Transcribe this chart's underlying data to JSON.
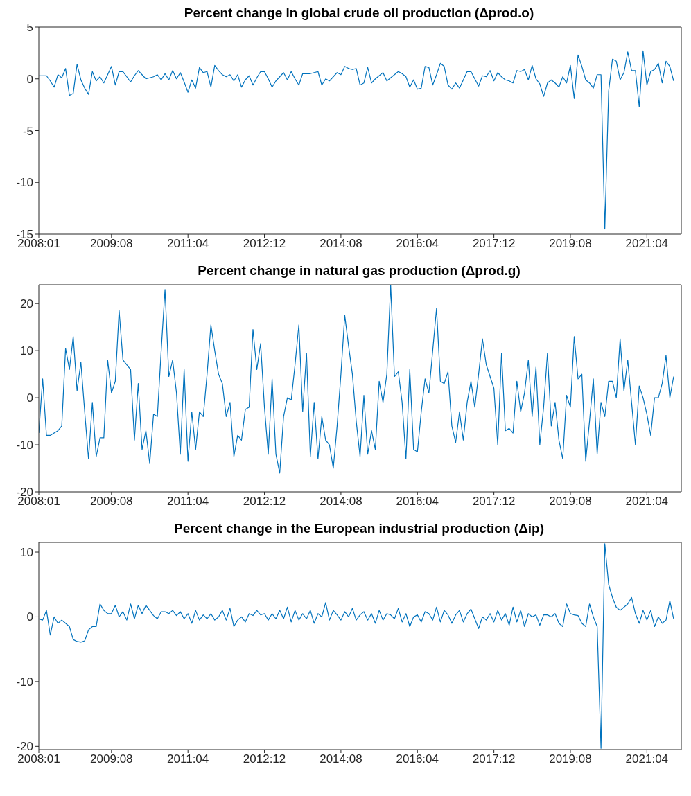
{
  "chart_data": [
    {
      "type": "line",
      "title": "Percent change in global crude oil production (Δprod.o)",
      "color": "#0072bd",
      "x": [
        "2008-01",
        "2008-02",
        "2008-03",
        "2008-04",
        "2008-05",
        "2008-06",
        "2008-07",
        "2008-08",
        "2008-09",
        "2008-10",
        "2008-11",
        "2008-12",
        "2009-01",
        "2009-02",
        "2009-03",
        "2009-04",
        "2009-05",
        "2009-06",
        "2009-07",
        "2009-08",
        "2009-09",
        "2009-10",
        "2009-11",
        "2009-12",
        "2010-01",
        "2010-02",
        "2010-03",
        "2010-04",
        "2010-05",
        "2010-06",
        "2010-07",
        "2010-08",
        "2010-09",
        "2010-10",
        "2010-11",
        "2010-12",
        "2011-01",
        "2011-02",
        "2011-03",
        "2011-04",
        "2011-05",
        "2011-06",
        "2011-07",
        "2011-08",
        "2011-09",
        "2011-10",
        "2011-11",
        "2011-12",
        "2012-01",
        "2012-02",
        "2012-03",
        "2012-04",
        "2012-05",
        "2012-06",
        "2012-07",
        "2012-08",
        "2012-09",
        "2012-10",
        "2012-11",
        "2012-12",
        "2013-01",
        "2013-02",
        "2013-03",
        "2013-04",
        "2013-05",
        "2013-06",
        "2013-07",
        "2013-08",
        "2013-09",
        "2013-10",
        "2013-11",
        "2013-12",
        "2014-01",
        "2014-02",
        "2014-03",
        "2014-04",
        "2014-05",
        "2014-06",
        "2014-07",
        "2014-08",
        "2014-09",
        "2014-10",
        "2014-11",
        "2014-12",
        "2015-01",
        "2015-02",
        "2015-03",
        "2015-04",
        "2015-05",
        "2015-06",
        "2015-07",
        "2015-08",
        "2015-09",
        "2015-10",
        "2015-11",
        "2015-12",
        "2016-01",
        "2016-02",
        "2016-03",
        "2016-04",
        "2016-05",
        "2016-06",
        "2016-07",
        "2016-08",
        "2016-09",
        "2016-10",
        "2016-11",
        "2016-12",
        "2017-01",
        "2017-02",
        "2017-03",
        "2017-04",
        "2017-05",
        "2017-06",
        "2017-07",
        "2017-08",
        "2017-09",
        "2017-10",
        "2017-11",
        "2017-12",
        "2018-01",
        "2018-02",
        "2018-03",
        "2018-04",
        "2018-05",
        "2018-06",
        "2018-07",
        "2018-08",
        "2018-09",
        "2018-10",
        "2018-11",
        "2018-12",
        "2019-01",
        "2019-02",
        "2019-03",
        "2019-04",
        "2019-05",
        "2019-06",
        "2019-07",
        "2019-08",
        "2019-09",
        "2019-10",
        "2019-11",
        "2019-12",
        "2020-01",
        "2020-02",
        "2020-03",
        "2020-04",
        "2020-05",
        "2020-06",
        "2020-07",
        "2020-08",
        "2020-09",
        "2020-10",
        "2020-11",
        "2020-12",
        "2021-01",
        "2021-02",
        "2021-03",
        "2021-04",
        "2021-05",
        "2021-06",
        "2021-07",
        "2021-08",
        "2021-09",
        "2021-10",
        "2021-11"
      ],
      "values": [
        0.3,
        0.3,
        0.3,
        -0.2,
        -0.8,
        0.4,
        0.1,
        1.0,
        -1.6,
        -1.4,
        1.4,
        -0.1,
        -0.9,
        -1.5,
        0.7,
        -0.2,
        0.2,
        -0.4,
        0.4,
        1.2,
        -0.6,
        0.7,
        0.7,
        0.2,
        -0.3,
        0.3,
        0.8,
        0.4,
        0,
        0.1,
        0.2,
        0.4,
        -0.1,
        0.5,
        -0.1,
        0.8,
        0,
        0.6,
        -0.3,
        -1.3,
        -0.1,
        -0.9,
        1.1,
        0.6,
        0.7,
        -0.8,
        1.3,
        0.8,
        0.4,
        0.2,
        0.4,
        -0.2,
        0.4,
        -0.8,
        -0.1,
        0.3,
        -0.6,
        0.1,
        0.7,
        0.7,
        0,
        -0.8,
        -0.2,
        0.2,
        0.6,
        -0.1,
        0.7,
        0,
        -0.6,
        0.5,
        0.5,
        0.5,
        0.6,
        0.7,
        -0.6,
        0,
        -0.2,
        0.2,
        0.6,
        0.4,
        1.2,
        1.0,
        0.9,
        1.0,
        -0.6,
        -0.4,
        1.1,
        -0.4,
        0,
        0.3,
        0.6,
        -0.2,
        0.1,
        0.4,
        0.7,
        0.5,
        0.2,
        -0.8,
        -0.1,
        -1.0,
        -0.9,
        1.2,
        1.1,
        -0.6,
        0.4,
        1.5,
        1.2,
        -0.6,
        -1.0,
        -0.4,
        -0.9,
        -0.1,
        0.7,
        0.7,
        0,
        -0.7,
        0.3,
        0.2,
        0.8,
        -0.2,
        0.6,
        0.2,
        -0.1,
        -0.2,
        -0.4,
        0.8,
        0.7,
        0.9,
        -0.1,
        1.3,
        0,
        -0.5,
        -1.7,
        -0.4,
        -0.1,
        -0.4,
        -0.8,
        0.2,
        -0.4,
        1.3,
        -1.9,
        2.3,
        1.2,
        -0.1,
        -0.4,
        -0.9,
        0.4,
        0.4,
        -14.5,
        -1.2,
        1.9,
        1.7,
        -0.1,
        0.6,
        2.6,
        0.8,
        0.8,
        -2.7,
        2.7,
        -0.6,
        0.7,
        0.9,
        1.5,
        -0.4,
        1.7,
        1.2,
        -0.2
      ],
      "xlim": [
        "2008-01",
        "2022-01"
      ],
      "xticks": [
        {
          "value": "2008-01",
          "label": "2008:01"
        },
        {
          "value": "2009-08",
          "label": "2009:08"
        },
        {
          "value": "2011-04",
          "label": "2011:04"
        },
        {
          "value": "2012-12",
          "label": "2012:12"
        },
        {
          "value": "2014-08",
          "label": "2014:08"
        },
        {
          "value": "2016-04",
          "label": "2016:04"
        },
        {
          "value": "2017-12",
          "label": "2017:12"
        },
        {
          "value": "2019-08",
          "label": "2019:08"
        },
        {
          "value": "2021-04",
          "label": "2021:04"
        }
      ],
      "ylim": [
        -15,
        5
      ],
      "yticks": [
        -15,
        -10,
        -5,
        0,
        5
      ]
    },
    {
      "type": "line",
      "title": "Percent change in natural gas production (Δprod.g)",
      "color": "#0072bd",
      "x": [
        "2008-01",
        "2008-02",
        "2008-03",
        "2008-04",
        "2008-05",
        "2008-06",
        "2008-07",
        "2008-08",
        "2008-09",
        "2008-10",
        "2008-11",
        "2008-12",
        "2009-01",
        "2009-02",
        "2009-03",
        "2009-04",
        "2009-05",
        "2009-06",
        "2009-07",
        "2009-08",
        "2009-09",
        "2009-10",
        "2009-11",
        "2009-12",
        "2010-01",
        "2010-02",
        "2010-03",
        "2010-04",
        "2010-05",
        "2010-06",
        "2010-07",
        "2010-08",
        "2010-09",
        "2010-10",
        "2010-11",
        "2010-12",
        "2011-01",
        "2011-02",
        "2011-03",
        "2011-04",
        "2011-05",
        "2011-06",
        "2011-07",
        "2011-08",
        "2011-09",
        "2011-10",
        "2011-11",
        "2011-12",
        "2012-01",
        "2012-02",
        "2012-03",
        "2012-04",
        "2012-05",
        "2012-06",
        "2012-07",
        "2012-08",
        "2012-09",
        "2012-10",
        "2012-11",
        "2012-12",
        "2013-01",
        "2013-02",
        "2013-03",
        "2013-04",
        "2013-05",
        "2013-06",
        "2013-07",
        "2013-08",
        "2013-09",
        "2013-10",
        "2013-11",
        "2013-12",
        "2014-01",
        "2014-02",
        "2014-03",
        "2014-04",
        "2014-05",
        "2014-06",
        "2014-07",
        "2014-08",
        "2014-09",
        "2014-10",
        "2014-11",
        "2014-12",
        "2015-01",
        "2015-02",
        "2015-03",
        "2015-04",
        "2015-05",
        "2015-06",
        "2015-07",
        "2015-08",
        "2015-09",
        "2015-10",
        "2015-11",
        "2015-12",
        "2016-01",
        "2016-02",
        "2016-03",
        "2016-04",
        "2016-05",
        "2016-06",
        "2016-07",
        "2016-08",
        "2016-09",
        "2016-10",
        "2016-11",
        "2016-12",
        "2017-01",
        "2017-02",
        "2017-03",
        "2017-04",
        "2017-05",
        "2017-06",
        "2017-07",
        "2017-08",
        "2017-09",
        "2017-10",
        "2017-11",
        "2017-12",
        "2018-01",
        "2018-02",
        "2018-03",
        "2018-04",
        "2018-05",
        "2018-06",
        "2018-07",
        "2018-08",
        "2018-09",
        "2018-10",
        "2018-11",
        "2018-12",
        "2019-01",
        "2019-02",
        "2019-03",
        "2019-04",
        "2019-05",
        "2019-06",
        "2019-07",
        "2019-08",
        "2019-09",
        "2019-10",
        "2019-11",
        "2019-12",
        "2020-01",
        "2020-02",
        "2020-03",
        "2020-04",
        "2020-05",
        "2020-06",
        "2020-07",
        "2020-08",
        "2020-09",
        "2020-10",
        "2020-11",
        "2020-12",
        "2021-01",
        "2021-02",
        "2021-03",
        "2021-04",
        "2021-05",
        "2021-06",
        "2021-07",
        "2021-08",
        "2021-09",
        "2021-10",
        "2021-11"
      ],
      "values": [
        -7.5,
        4,
        -8,
        -8,
        -7.5,
        -7,
        -6,
        10.5,
        6,
        13,
        1.5,
        7.5,
        -3,
        -13,
        -1,
        -12.5,
        -8.5,
        -8.5,
        8,
        1,
        3.5,
        18.5,
        8,
        7,
        6,
        -9,
        3,
        -11,
        -7,
        -14,
        -3.5,
        -4,
        10,
        23,
        4.5,
        8,
        1,
        -12,
        6,
        -13.5,
        -3,
        -11,
        -3,
        -4,
        5,
        15.5,
        10,
        5,
        3,
        -4,
        -1,
        -12.5,
        -8,
        -9,
        -2.5,
        -2,
        14.5,
        6,
        11.5,
        -2,
        -12,
        4,
        -12,
        -16,
        -4,
        0,
        -0.5,
        7,
        15.5,
        -3,
        9.5,
        -12.5,
        -1,
        -13,
        -4,
        -9,
        -10,
        -15,
        -6,
        5,
        17.5,
        11,
        5,
        -5,
        -12.5,
        0.5,
        -12,
        -7,
        -11,
        3.5,
        -1,
        5,
        24,
        4.5,
        5.5,
        -1,
        -13,
        6,
        -11,
        -11.5,
        -3,
        4,
        1,
        10,
        19,
        3.5,
        3,
        5.5,
        -6,
        -9.5,
        -3,
        -9,
        -1,
        3.5,
        -2,
        5,
        12.5,
        7,
        4.5,
        2,
        -10,
        9.5,
        -7,
        -6.5,
        -7.5,
        3.5,
        -3,
        1,
        8,
        -4,
        6.5,
        -10,
        -2,
        9.5,
        -6,
        -1,
        -9,
        -13,
        0.5,
        -2,
        13,
        4,
        5,
        -13.5,
        -5,
        4,
        -12,
        -1,
        -4,
        3.5,
        3.5,
        0,
        12.5,
        1.5,
        8,
        -1,
        -10,
        2.5,
        0,
        -3.5,
        -8,
        0,
        0,
        3,
        9,
        0,
        4.5
      ],
      "xlim": [
        "2008-01",
        "2022-01"
      ],
      "xticks": [
        {
          "value": "2008-01",
          "label": "2008:01"
        },
        {
          "value": "2009-08",
          "label": "2009:08"
        },
        {
          "value": "2011-04",
          "label": "2011:04"
        },
        {
          "value": "2012-12",
          "label": "2012:12"
        },
        {
          "value": "2014-08",
          "label": "2014:08"
        },
        {
          "value": "2016-04",
          "label": "2016:04"
        },
        {
          "value": "2017-12",
          "label": "2017:12"
        },
        {
          "value": "2019-08",
          "label": "2019:08"
        },
        {
          "value": "2021-04",
          "label": "2021:04"
        }
      ],
      "ylim": [
        -20,
        24
      ],
      "yticks": [
        -20,
        -10,
        0,
        10,
        20
      ]
    },
    {
      "type": "line",
      "title": "Percent change in the European industrial production (Δip)",
      "color": "#0072bd",
      "x": [
        "2008-01",
        "2008-02",
        "2008-03",
        "2008-04",
        "2008-05",
        "2008-06",
        "2008-07",
        "2008-08",
        "2008-09",
        "2008-10",
        "2008-11",
        "2008-12",
        "2009-01",
        "2009-02",
        "2009-03",
        "2009-04",
        "2009-05",
        "2009-06",
        "2009-07",
        "2009-08",
        "2009-09",
        "2009-10",
        "2009-11",
        "2009-12",
        "2010-01",
        "2010-02",
        "2010-03",
        "2010-04",
        "2010-05",
        "2010-06",
        "2010-07",
        "2010-08",
        "2010-09",
        "2010-10",
        "2010-11",
        "2010-12",
        "2011-01",
        "2011-02",
        "2011-03",
        "2011-04",
        "2011-05",
        "2011-06",
        "2011-07",
        "2011-08",
        "2011-09",
        "2011-10",
        "2011-11",
        "2011-12",
        "2012-01",
        "2012-02",
        "2012-03",
        "2012-04",
        "2012-05",
        "2012-06",
        "2012-07",
        "2012-08",
        "2012-09",
        "2012-10",
        "2012-11",
        "2012-12",
        "2013-01",
        "2013-02",
        "2013-03",
        "2013-04",
        "2013-05",
        "2013-06",
        "2013-07",
        "2013-08",
        "2013-09",
        "2013-10",
        "2013-11",
        "2013-12",
        "2014-01",
        "2014-02",
        "2014-03",
        "2014-04",
        "2014-05",
        "2014-06",
        "2014-07",
        "2014-08",
        "2014-09",
        "2014-10",
        "2014-11",
        "2014-12",
        "2015-01",
        "2015-02",
        "2015-03",
        "2015-04",
        "2015-05",
        "2015-06",
        "2015-07",
        "2015-08",
        "2015-09",
        "2015-10",
        "2015-11",
        "2015-12",
        "2016-01",
        "2016-02",
        "2016-03",
        "2016-04",
        "2016-05",
        "2016-06",
        "2016-07",
        "2016-08",
        "2016-09",
        "2016-10",
        "2016-11",
        "2016-12",
        "2017-01",
        "2017-02",
        "2017-03",
        "2017-04",
        "2017-05",
        "2017-06",
        "2017-07",
        "2017-08",
        "2017-09",
        "2017-10",
        "2017-11",
        "2017-12",
        "2018-01",
        "2018-02",
        "2018-03",
        "2018-04",
        "2018-05",
        "2018-06",
        "2018-07",
        "2018-08",
        "2018-09",
        "2018-10",
        "2018-11",
        "2018-12",
        "2019-01",
        "2019-02",
        "2019-03",
        "2019-04",
        "2019-05",
        "2019-06",
        "2019-07",
        "2019-08",
        "2019-09",
        "2019-10",
        "2019-11",
        "2019-12",
        "2020-01",
        "2020-02",
        "2020-03",
        "2020-04",
        "2020-05",
        "2020-06",
        "2020-07",
        "2020-08",
        "2020-09",
        "2020-10",
        "2020-11",
        "2020-12",
        "2021-01",
        "2021-02",
        "2021-03",
        "2021-04",
        "2021-05",
        "2021-06",
        "2021-07",
        "2021-08",
        "2021-09",
        "2021-10",
        "2021-11"
      ],
      "values": [
        -0.3,
        -0.5,
        1,
        -2.8,
        0,
        -1,
        -0.5,
        -1,
        -1.5,
        -3.5,
        -3.8,
        -3.9,
        -3.7,
        -2,
        -1.5,
        -1.5,
        2,
        1,
        0.5,
        0.5,
        1.8,
        0,
        0.8,
        -0.5,
        2,
        -0.3,
        1.8,
        0.5,
        1.8,
        1,
        0.2,
        -0.3,
        0.8,
        0.8,
        0.5,
        1,
        0.2,
        0.8,
        -0.3,
        0.5,
        -1,
        1,
        -0.5,
        0.3,
        -0.3,
        0.5,
        -0.5,
        0,
        1,
        -0.5,
        1.3,
        -1.5,
        -0.5,
        0,
        -0.8,
        0.5,
        0.2,
        1,
        0.3,
        0.5,
        -0.5,
        0.5,
        -0.3,
        1,
        -0.3,
        1.5,
        -0.8,
        1,
        -0.5,
        0.5,
        -0.3,
        1,
        -1,
        0.5,
        0,
        2.2,
        -0.5,
        1,
        0.3,
        -0.5,
        0.8,
        0,
        1.3,
        -0.5,
        0.3,
        0.8,
        -0.5,
        0.5,
        -1,
        1,
        -0.5,
        0.5,
        0.3,
        -0.3,
        1.3,
        -0.8,
        0.5,
        -1.5,
        0,
        0.3,
        -0.8,
        0.8,
        0.5,
        -0.5,
        1.5,
        -0.8,
        1,
        0.3,
        -1,
        0.3,
        1,
        -0.8,
        0.5,
        1.2,
        -0.3,
        -1.8,
        0,
        -0.5,
        0.5,
        -0.8,
        1,
        -0.5,
        0.5,
        -1.3,
        1.5,
        -0.8,
        1,
        -1.5,
        0.5,
        0,
        0.3,
        -1.3,
        0.3,
        0.3,
        0,
        0.5,
        -1,
        -1.5,
        2,
        0.5,
        0.3,
        0.2,
        -1,
        -1.5,
        2,
        0,
        -1.5,
        -20.3,
        11.3,
        5,
        3,
        1.5,
        1,
        1.5,
        2,
        3,
        0.5,
        -1,
        1,
        -0.5,
        1,
        -1.5,
        0,
        -1,
        -0.5,
        2.5,
        -0.3
      ],
      "xlim": [
        "2008-01",
        "2022-01"
      ],
      "xticks": [
        {
          "value": "2008-01",
          "label": "2008:01"
        },
        {
          "value": "2009-08",
          "label": "2009:08"
        },
        {
          "value": "2011-04",
          "label": "2011:04"
        },
        {
          "value": "2012-12",
          "label": "2012:12"
        },
        {
          "value": "2014-08",
          "label": "2014:08"
        },
        {
          "value": "2016-04",
          "label": "2016:04"
        },
        {
          "value": "2017-12",
          "label": "2017:12"
        },
        {
          "value": "2019-08",
          "label": "2019:08"
        },
        {
          "value": "2021-04",
          "label": "2021:04"
        }
      ],
      "ylim": [
        -20.5,
        11.5
      ],
      "yticks": [
        -20,
        -10,
        0,
        10
      ]
    }
  ]
}
